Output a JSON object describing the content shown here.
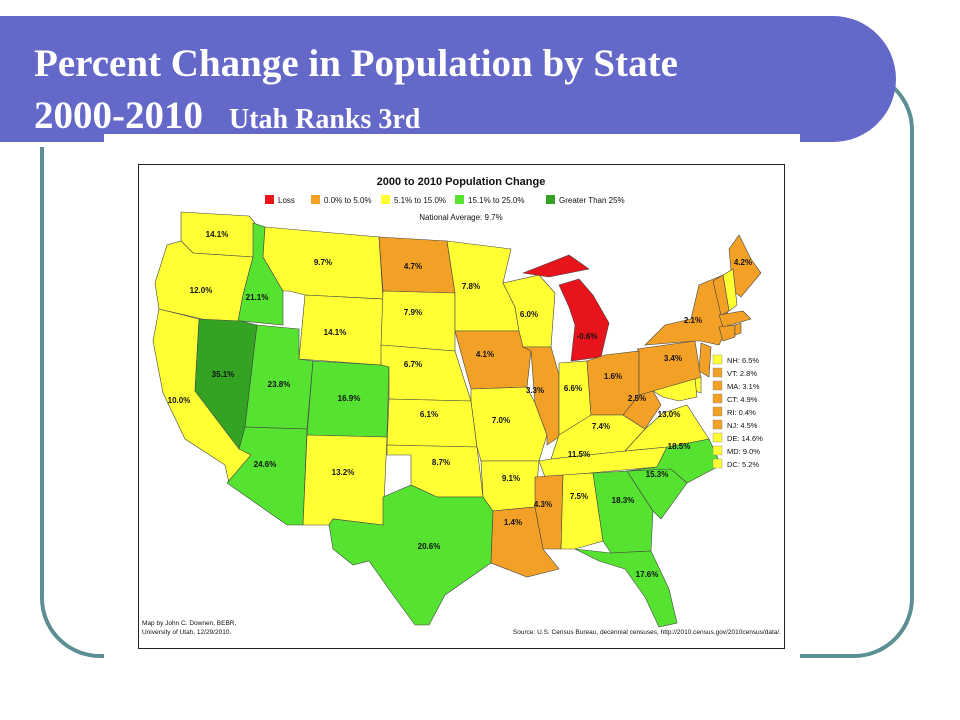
{
  "slide": {
    "title_line1": "Percent Change in Population by State",
    "title_year": "2000-2010",
    "title_sub": "Utah Ranks 3rd"
  },
  "map": {
    "title": "2000 to 2010 Population Change",
    "national_average": "National Average: 9.7%",
    "legend": [
      {
        "label": "Loss",
        "color": "#e8141b"
      },
      {
        "label": "0.0% to 5.0%",
        "color": "#f3a126"
      },
      {
        "label": "5.1% to 15.0%",
        "color": "#ffff33"
      },
      {
        "label": "15.1% to 25.0%",
        "color": "#55e230"
      },
      {
        "label": "Greater Than 25%",
        "color": "#34a324"
      }
    ],
    "states": [
      {
        "name": "WA",
        "label": "14.1%",
        "value": 14.1
      },
      {
        "name": "OR",
        "label": "12.0%",
        "value": 12.0
      },
      {
        "name": "CA",
        "label": "10.0%",
        "value": 10.0
      },
      {
        "name": "ID",
        "label": "21.1%",
        "value": 21.1
      },
      {
        "name": "NV",
        "label": "35.1%",
        "value": 35.1
      },
      {
        "name": "MT",
        "label": "9.7%",
        "value": 9.7
      },
      {
        "name": "WY",
        "label": "14.1%",
        "value": 14.1
      },
      {
        "name": "UT",
        "label": "23.8%",
        "value": 23.8
      },
      {
        "name": "AZ",
        "label": "24.6%",
        "value": 24.6
      },
      {
        "name": "CO",
        "label": "16.9%",
        "value": 16.9
      },
      {
        "name": "NM",
        "label": "13.2%",
        "value": 13.2
      },
      {
        "name": "ND",
        "label": "4.7%",
        "value": 4.7
      },
      {
        "name": "SD",
        "label": "7.9%",
        "value": 7.9
      },
      {
        "name": "NE",
        "label": "6.7%",
        "value": 6.7
      },
      {
        "name": "KS",
        "label": "6.1%",
        "value": 6.1
      },
      {
        "name": "OK",
        "label": "8.7%",
        "value": 8.7
      },
      {
        "name": "TX",
        "label": "20.6%",
        "value": 20.6
      },
      {
        "name": "MN",
        "label": "7.8%",
        "value": 7.8
      },
      {
        "name": "IA",
        "label": "4.1%",
        "value": 4.1
      },
      {
        "name": "MO",
        "label": "7.0%",
        "value": 7.0
      },
      {
        "name": "AR",
        "label": "9.1%",
        "value": 9.1
      },
      {
        "name": "LA",
        "label": "1.4%",
        "value": 1.4
      },
      {
        "name": "WI",
        "label": "6.0%",
        "value": 6.0
      },
      {
        "name": "IL",
        "label": "3.3%",
        "value": 3.3
      },
      {
        "name": "MI",
        "label": "-0.6%",
        "value": -0.6
      },
      {
        "name": "IN",
        "label": "6.6%",
        "value": 6.6
      },
      {
        "name": "OH",
        "label": "1.6%",
        "value": 1.6
      },
      {
        "name": "KY",
        "label": "7.4%",
        "value": 7.4
      },
      {
        "name": "TN",
        "label": "11.5%",
        "value": 11.5
      },
      {
        "name": "MS",
        "label": "4.3%",
        "value": 4.3
      },
      {
        "name": "AL",
        "label": "7.5%",
        "value": 7.5
      },
      {
        "name": "GA",
        "label": "18.3%",
        "value": 18.3
      },
      {
        "name": "FL",
        "label": "17.6%",
        "value": 17.6
      },
      {
        "name": "SC",
        "label": "15.3%",
        "value": 15.3
      },
      {
        "name": "NC",
        "label": "18.5%",
        "value": 18.5
      },
      {
        "name": "VA",
        "label": "13.0%",
        "value": 13.0
      },
      {
        "name": "WV",
        "label": "2.5%",
        "value": 2.5
      },
      {
        "name": "PA",
        "label": "3.4%",
        "value": 3.4
      },
      {
        "name": "NY",
        "label": "2.1%",
        "value": 2.1
      },
      {
        "name": "ME",
        "label": "4.2%",
        "value": 4.2
      }
    ],
    "small_states": [
      {
        "label": "NH: 6.5%",
        "color": "#ffff33"
      },
      {
        "label": "VT: 2.8%",
        "color": "#f3a126"
      },
      {
        "label": "MA: 3.1%",
        "color": "#f3a126"
      },
      {
        "label": "CT: 4.9%",
        "color": "#f3a126"
      },
      {
        "label": "RI: 0.4%",
        "color": "#f3a126"
      },
      {
        "label": "NJ: 4.5%",
        "color": "#f3a126"
      },
      {
        "label": "DE: 14.6%",
        "color": "#ffff33"
      },
      {
        "label": "MD: 9.0%",
        "color": "#ffff33"
      },
      {
        "label": "DC: 5.2%",
        "color": "#ffff33"
      }
    ],
    "credit_line1": "Map by John C. Downen, BEBR,",
    "credit_line2": "University of Utah, 12/29/2010.",
    "source": "Source: U.S. Census Bureau, decennial censuses, http://2010.census.gov/2010census/data/."
  }
}
